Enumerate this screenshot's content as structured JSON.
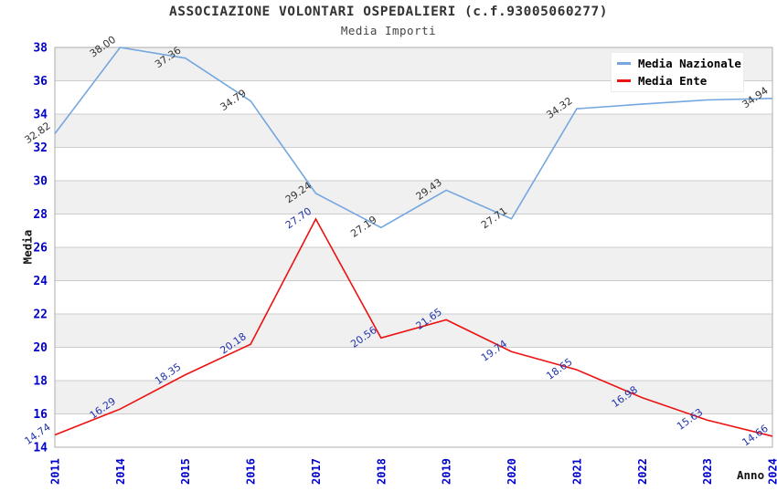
{
  "header": {
    "title": "ASSOCIAZIONE VOLONTARI OSPEDALIERI (c.f.93005060277)",
    "subtitle": "Media Importi"
  },
  "axes": {
    "x_title": "Anno",
    "y_title": "Media"
  },
  "legend": {
    "items": [
      {
        "label": "Media Nazionale",
        "color": "#74a7e0"
      },
      {
        "label": "Media Ente",
        "color": "#ee1111"
      }
    ]
  },
  "palette": {
    "tick_label_color": "#0000cc",
    "band_gray": "#f0f0f0",
    "gridline_color": "#cccccc",
    "plot_border_color": "#adadad",
    "title_color": "#333333"
  },
  "chart_data": {
    "type": "line",
    "title": "ASSOCIAZIONE VOLONTARI OSPEDALIERI (c.f.93005060277)",
    "subtitle": "Media Importi",
    "xlabel": "Anno",
    "ylabel": "Media",
    "ylim": [
      14,
      38
    ],
    "y_tick_step": 2,
    "grid": true,
    "band_colors": [
      "#f0f0f0",
      "#ffffff"
    ],
    "legend_position": "top-right",
    "categories": [
      "2011",
      "2014",
      "2015",
      "2016",
      "2017",
      "2018",
      "2019",
      "2020",
      "2021",
      "2022",
      "2023",
      "2024"
    ],
    "series": [
      {
        "name": "Media Nazionale",
        "color": "#74a7e0",
        "label_color": "#333333",
        "values": [
          32.82,
          38.0,
          37.36,
          34.79,
          29.24,
          27.19,
          29.43,
          27.71,
          34.32,
          34.6,
          34.85,
          34.94
        ],
        "labels": [
          "32.82",
          "38.00",
          "37.36",
          "34.79",
          "29.24",
          "27.19",
          "29.43",
          "27.71",
          "34.32",
          null,
          null,
          "34.94"
        ]
      },
      {
        "name": "Media Ente",
        "color": "#ee1111",
        "label_color": "#2233aa",
        "values": [
          14.74,
          16.29,
          18.35,
          20.18,
          27.7,
          20.56,
          21.65,
          19.74,
          18.65,
          16.98,
          15.63,
          14.66
        ],
        "labels": [
          "14.74",
          "16.29",
          "18.35",
          "20.18",
          "27.70",
          "20.56",
          "21.65",
          "19.74",
          "18.65",
          "16.98",
          "15.63",
          "14.66"
        ]
      }
    ]
  }
}
